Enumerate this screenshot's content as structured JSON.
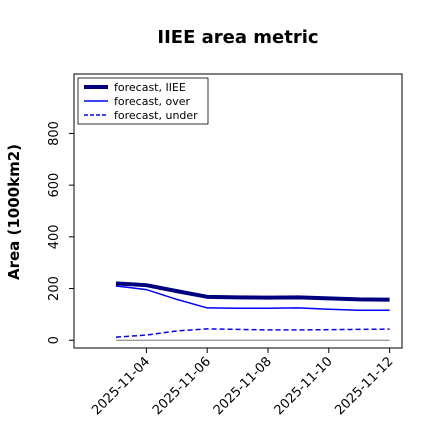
{
  "chart_data": {
    "type": "line",
    "title": "IIEE area metric",
    "xlabel": "",
    "ylabel": "Area (1000km2)",
    "x": [
      "2025-11-03",
      "2025-11-04",
      "2025-11-05",
      "2025-11-06",
      "2025-11-07",
      "2025-11-08",
      "2025-11-09",
      "2025-11-10",
      "2025-11-11",
      "2025-11-12"
    ],
    "x_tick_labels": [
      "2025-11-04",
      "2025-11-06",
      "2025-11-08",
      "2025-11-10",
      "2025-11-12"
    ],
    "highlight_tick": "2025-11-04",
    "highlight_color": "#228b22",
    "ylim": [
      -30,
      1030
    ],
    "yticks": [
      0,
      200,
      400,
      600,
      800
    ],
    "legend_position": "top-left",
    "grid": false,
    "series": [
      {
        "name": "forecast, IIEE",
        "style": "thick",
        "color": "#00007f",
        "values": [
          220,
          213,
          190,
          168,
          166,
          165,
          166,
          162,
          158,
          157
        ]
      },
      {
        "name": "forecast, over",
        "style": "solid",
        "color": "#0000ff",
        "values": [
          210,
          196,
          158,
          125,
          124,
          124,
          125,
          120,
          116,
          116
        ]
      },
      {
        "name": "forecast, under",
        "style": "dashed",
        "color": "#0000ff",
        "values": [
          12,
          20,
          36,
          44,
          42,
          40,
          40,
          41,
          42,
          43
        ]
      },
      {
        "name": "",
        "style": "thin",
        "color": "#777777",
        "values": [
          0,
          0,
          0,
          0,
          0,
          0,
          0,
          0,
          0,
          0
        ]
      }
    ]
  }
}
